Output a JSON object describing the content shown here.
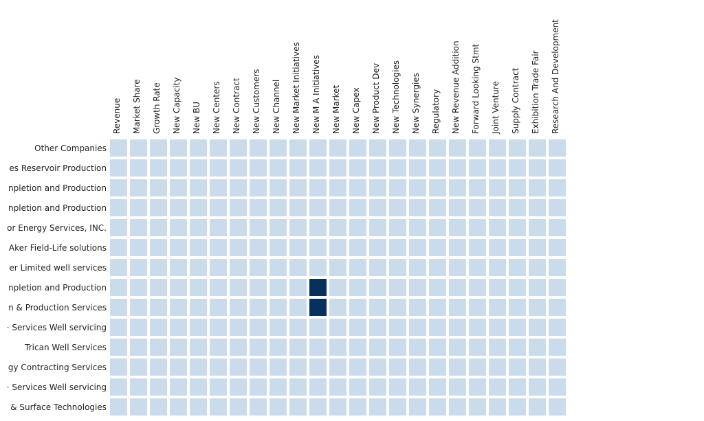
{
  "chart_data": {
    "type": "heatmap",
    "title": "",
    "xlabel": "",
    "ylabel": "",
    "x_categories": [
      "Revenue",
      "Market Share",
      "Growth Rate",
      "New Capacity",
      "New BU",
      "New Centers",
      "New Contract",
      "New Customers",
      "New Channel",
      "New Market Initiatives",
      "New M A Initiatives",
      "New Market",
      "New Capex",
      "New Product Dev",
      "New Technologies",
      "New Synergies",
      "Regulatory",
      "New Revenue Addition",
      "Forward Looking Stmt",
      "Joint Venture",
      "Supply Contract",
      "Exhibition Trade Fair",
      "Research And Development"
    ],
    "y_categories": [
      "Other Companies",
      "es Reservoir Production",
      "npletion and Production",
      "npletion and Production",
      "or Energy Services, INC.",
      "Aker Field-Life solutions",
      "er Limited well services",
      "npletion and Production",
      "n & Production Services",
      "· Services Well servicing",
      "Trican Well Services",
      "gy Contracting Services",
      "· Services Well servicing",
      "& Surface Technologies"
    ],
    "values": [
      [
        0,
        0,
        0,
        0,
        0,
        0,
        0,
        0,
        0,
        0,
        0,
        0,
        0,
        0,
        0,
        0,
        0,
        0,
        0,
        0,
        0,
        0,
        0
      ],
      [
        0,
        0,
        0,
        0,
        0,
        0,
        0,
        0,
        0,
        0,
        0,
        0,
        0,
        0,
        0,
        0,
        0,
        0,
        0,
        0,
        0,
        0,
        0
      ],
      [
        0,
        0,
        0,
        0,
        0,
        0,
        0,
        0,
        0,
        0,
        0,
        0,
        0,
        0,
        0,
        0,
        0,
        0,
        0,
        0,
        0,
        0,
        0
      ],
      [
        0,
        0,
        0,
        0,
        0,
        0,
        0,
        0,
        0,
        0,
        0,
        0,
        0,
        0,
        0,
        0,
        0,
        0,
        0,
        0,
        0,
        0,
        0
      ],
      [
        0,
        0,
        0,
        0,
        0,
        0,
        0,
        0,
        0,
        0,
        0,
        0,
        0,
        0,
        0,
        0,
        0,
        0,
        0,
        0,
        0,
        0,
        0
      ],
      [
        0,
        0,
        0,
        0,
        0,
        0,
        0,
        0,
        0,
        0,
        0,
        0,
        0,
        0,
        0,
        0,
        0,
        0,
        0,
        0,
        0,
        0,
        0
      ],
      [
        0,
        0,
        0,
        0,
        0,
        0,
        0,
        0,
        0,
        0,
        0,
        0,
        0,
        0,
        0,
        0,
        0,
        0,
        0,
        0,
        0,
        0,
        0
      ],
      [
        0,
        0,
        0,
        0,
        0,
        0,
        0,
        0,
        0,
        0,
        1,
        0,
        0,
        0,
        0,
        0,
        0,
        0,
        0,
        0,
        0,
        0,
        0
      ],
      [
        0,
        0,
        0,
        0,
        0,
        0,
        0,
        0,
        0,
        0,
        1,
        0,
        0,
        0,
        0,
        0,
        0,
        0,
        0,
        0,
        0,
        0,
        0
      ],
      [
        0,
        0,
        0,
        0,
        0,
        0,
        0,
        0,
        0,
        0,
        0,
        0,
        0,
        0,
        0,
        0,
        0,
        0,
        0,
        0,
        0,
        0,
        0
      ],
      [
        0,
        0,
        0,
        0,
        0,
        0,
        0,
        0,
        0,
        0,
        0,
        0,
        0,
        0,
        0,
        0,
        0,
        0,
        0,
        0,
        0,
        0,
        0
      ],
      [
        0,
        0,
        0,
        0,
        0,
        0,
        0,
        0,
        0,
        0,
        0,
        0,
        0,
        0,
        0,
        0,
        0,
        0,
        0,
        0,
        0,
        0,
        0
      ],
      [
        0,
        0,
        0,
        0,
        0,
        0,
        0,
        0,
        0,
        0,
        0,
        0,
        0,
        0,
        0,
        0,
        0,
        0,
        0,
        0,
        0,
        0,
        0
      ],
      [
        0,
        0,
        0,
        0,
        0,
        0,
        0,
        0,
        0,
        0,
        0,
        0,
        0,
        0,
        0,
        0,
        0,
        0,
        0,
        0,
        0,
        0,
        0
      ]
    ],
    "colors": {
      "low": "#cadbec",
      "high": "#08305e"
    },
    "legend": "none",
    "grid": false
  }
}
